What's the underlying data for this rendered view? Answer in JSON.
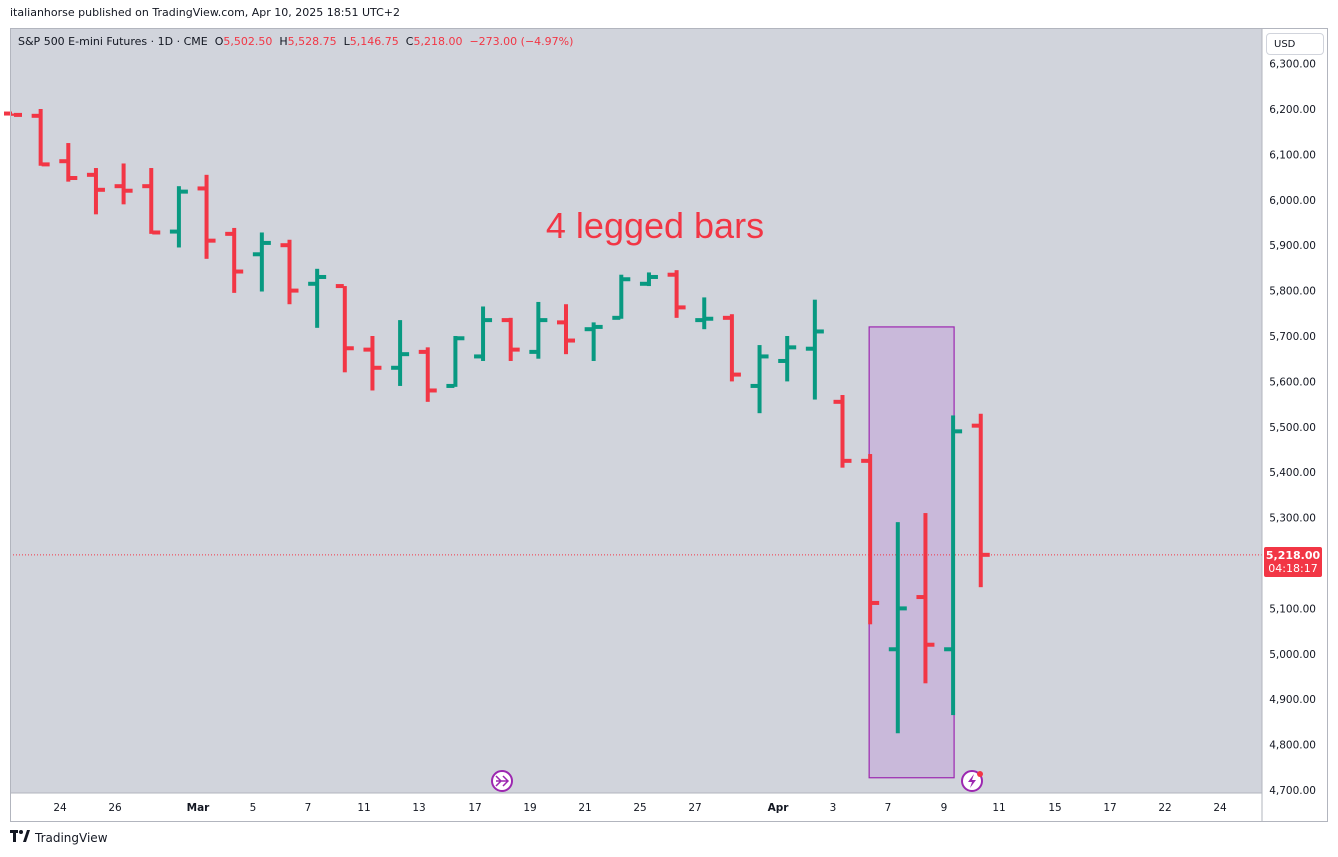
{
  "header": {
    "caption": "italianhorse published on TradingView.com, Apr 10, 2025 18:51 UTC+2"
  },
  "legend": {
    "symbol": "S&P 500 E-mini Futures · 1D · CME",
    "o_label": "O",
    "o": "5,502.50",
    "h_label": "H",
    "h": "5,528.75",
    "l_label": "L",
    "l": "5,146.75",
    "c_label": "C",
    "c": "5,218.00",
    "change": "−273.00 (−4.97%)"
  },
  "currency_button": "USD",
  "price_tag": {
    "price": "5,218.00",
    "countdown": "04:18:17"
  },
  "annotation": {
    "text": "4 legged bars"
  },
  "footer": {
    "brand": "TradingView"
  },
  "colors": {
    "up": "#089981",
    "down": "#f23645",
    "background": "#d1d4dc",
    "highlight_fill": "#c8b4d9",
    "highlight_border": "#9c27b0"
  },
  "icons": [
    "navigate-forward-icon",
    "lightning-icon",
    "tradingview-logo-icon"
  ],
  "chart_data": {
    "type": "ohlc",
    "symbol": "ES1!",
    "interval": "1D",
    "x_ticks": [
      "24",
      "26",
      "Mar",
      "5",
      "7",
      "11",
      "13",
      "17",
      "19",
      "21",
      "25",
      "27",
      "Apr",
      "3",
      "7",
      "9",
      "11",
      "15",
      "17",
      "22",
      "24"
    ],
    "y_ticks": [
      "4,700.00",
      "4,800.00",
      "4,900.00",
      "5,000.00",
      "5,100.00",
      "5,200.00",
      "5,300.00",
      "5,400.00",
      "5,500.00",
      "5,600.00",
      "5,700.00",
      "5,800.00",
      "5,900.00",
      "6,000.00",
      "6,100.00",
      "6,200.00",
      "6,300.00"
    ],
    "ylim": [
      4700,
      6300
    ],
    "last_price": 5218.0,
    "highlight_box": {
      "x_start_bar": 31,
      "x_end_bar": 34,
      "y_low": 4727,
      "y_high": 5720
    },
    "bars": [
      {
        "o": 6190,
        "h": 6190,
        "l": 6185,
        "c": 6187
      },
      {
        "o": 6185,
        "h": 6200,
        "l": 6075,
        "c": 6078
      },
      {
        "o": 6085,
        "h": 6125,
        "l": 6040,
        "c": 6048
      },
      {
        "o": 6055,
        "h": 6070,
        "l": 5968,
        "c": 6022
      },
      {
        "o": 6030,
        "h": 6080,
        "l": 5990,
        "c": 6020
      },
      {
        "o": 6030,
        "h": 6070,
        "l": 5925,
        "c": 5928
      },
      {
        "o": 5930,
        "h": 6030,
        "l": 5895,
        "c": 6018
      },
      {
        "o": 6025,
        "h": 6055,
        "l": 5870,
        "c": 5910
      },
      {
        "o": 5925,
        "h": 5938,
        "l": 5795,
        "c": 5842
      },
      {
        "o": 5880,
        "h": 5928,
        "l": 5798,
        "c": 5905
      },
      {
        "o": 5900,
        "h": 5912,
        "l": 5770,
        "c": 5800
      },
      {
        "o": 5815,
        "h": 5848,
        "l": 5718,
        "c": 5830
      },
      {
        "o": 5810,
        "h": 5810,
        "l": 5620,
        "c": 5673
      },
      {
        "o": 5670,
        "h": 5700,
        "l": 5580,
        "c": 5630
      },
      {
        "o": 5630,
        "h": 5735,
        "l": 5590,
        "c": 5660
      },
      {
        "o": 5665,
        "h": 5675,
        "l": 5555,
        "c": 5580
      },
      {
        "o": 5590,
        "h": 5700,
        "l": 5588,
        "c": 5695
      },
      {
        "o": 5655,
        "h": 5765,
        "l": 5645,
        "c": 5735
      },
      {
        "o": 5735,
        "h": 5740,
        "l": 5645,
        "c": 5670
      },
      {
        "o": 5665,
        "h": 5775,
        "l": 5650,
        "c": 5735
      },
      {
        "o": 5730,
        "h": 5770,
        "l": 5660,
        "c": 5690
      },
      {
        "o": 5715,
        "h": 5730,
        "l": 5645,
        "c": 5720
      },
      {
        "o": 5740,
        "h": 5835,
        "l": 5738,
        "c": 5825
      },
      {
        "o": 5815,
        "h": 5840,
        "l": 5810,
        "c": 5830
      },
      {
        "o": 5835,
        "h": 5845,
        "l": 5740,
        "c": 5763
      },
      {
        "o": 5735,
        "h": 5785,
        "l": 5715,
        "c": 5738
      },
      {
        "o": 5740,
        "h": 5748,
        "l": 5600,
        "c": 5615
      },
      {
        "o": 5590,
        "h": 5680,
        "l": 5530,
        "c": 5655
      },
      {
        "o": 5645,
        "h": 5700,
        "l": 5600,
        "c": 5675
      },
      {
        "o": 5672,
        "h": 5780,
        "l": 5560,
        "c": 5710
      },
      {
        "o": 5555,
        "h": 5570,
        "l": 5410,
        "c": 5425
      },
      {
        "o": 5425,
        "h": 5440,
        "l": 5065,
        "c": 5112
      },
      {
        "o": 5010,
        "h": 5290,
        "l": 4825,
        "c": 5100
      },
      {
        "o": 5125,
        "h": 5310,
        "l": 4935,
        "c": 5020
      },
      {
        "o": 5010,
        "h": 5525,
        "l": 4865,
        "c": 5490
      },
      {
        "o": 5502.5,
        "h": 5528.75,
        "l": 5146.75,
        "c": 5218
      }
    ]
  }
}
